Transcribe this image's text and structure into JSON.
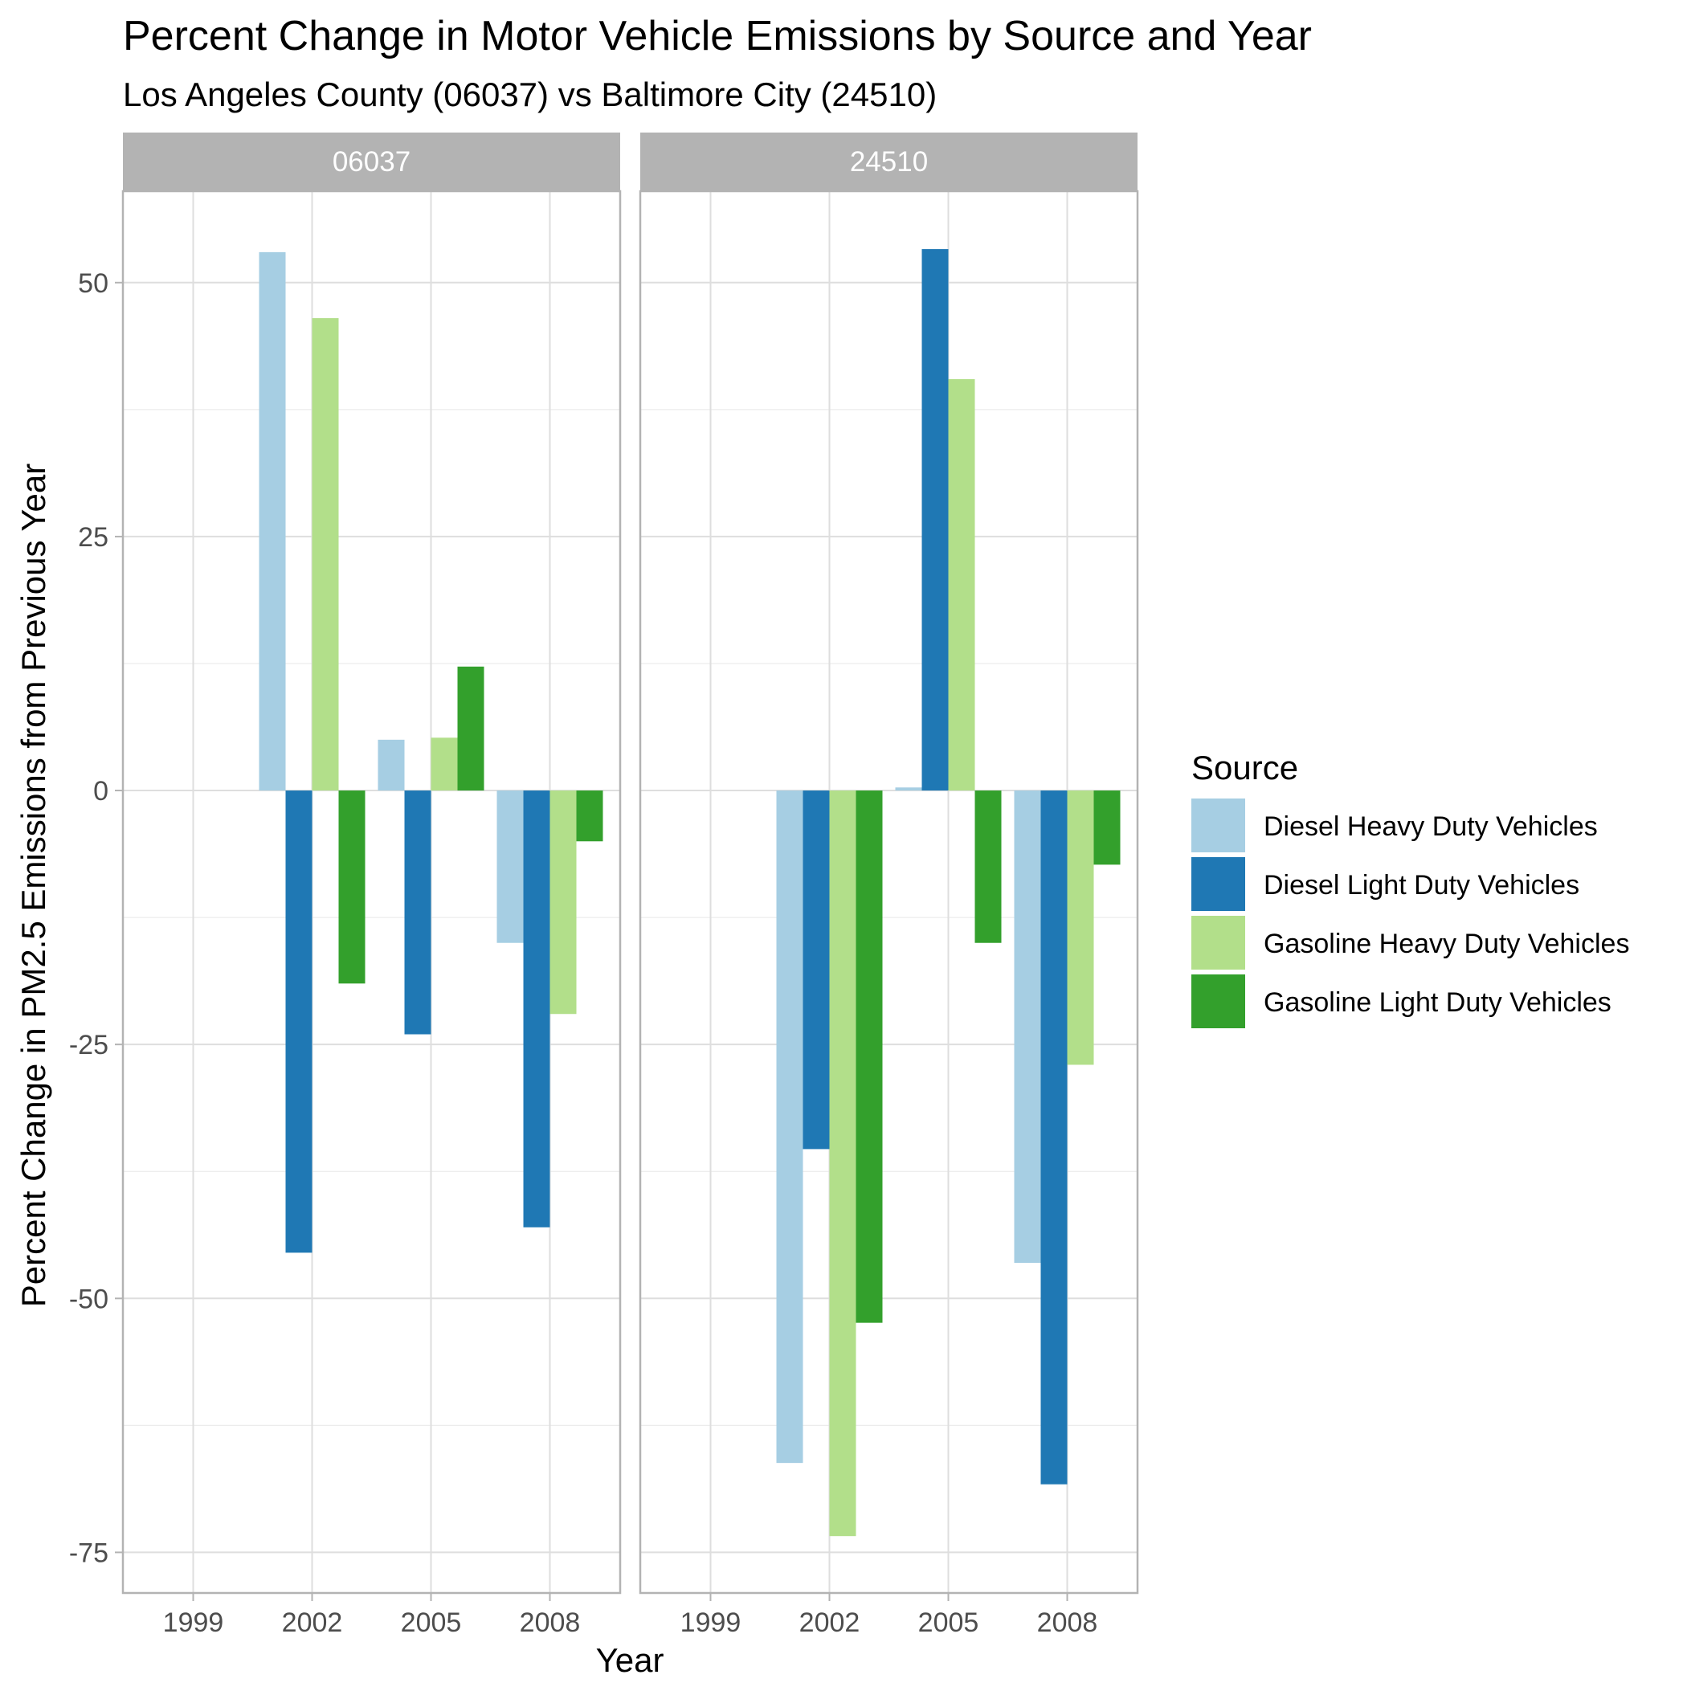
{
  "chart_data": {
    "type": "bar",
    "title": "Percent Change in Motor Vehicle Emissions by Source and Year",
    "subtitle": "Los Angeles County (06037) vs Baltimore City (24510)",
    "xlabel": "Year",
    "ylabel": "Percent Change in PM2.5 Emissions from Previous Year",
    "categories": [
      "1999",
      "2002",
      "2005",
      "2008"
    ],
    "y_ticks": [
      "50",
      "25",
      "0",
      "-25",
      "-50",
      "-75"
    ],
    "y_tick_values": [
      50,
      25,
      0,
      -25,
      -50,
      -75
    ],
    "ylim": [
      -79,
      59
    ],
    "grid": true,
    "legend": {
      "title": "Source",
      "placement": "right",
      "entries": [
        "Diesel Heavy Duty Vehicles",
        "Diesel Light Duty Vehicles",
        "Gasoline Heavy Duty Vehicles",
        "Gasoline Light Duty Vehicles"
      ]
    },
    "colors": {
      "Diesel Heavy Duty Vehicles": "#a6cee3",
      "Diesel Light Duty Vehicles": "#1f78b4",
      "Gasoline Heavy Duty Vehicles": "#b2df8a",
      "Gasoline Light Duty Vehicles": "#33a02c",
      "strip_bg": "#b3b3b3",
      "grid": "#dedede",
      "panel_border": "#b3b3b3",
      "axis_text": "#4d4d4d"
    },
    "panels": [
      {
        "label": "06037",
        "series": [
          {
            "name": "Diesel Heavy Duty Vehicles",
            "values": [
              null,
              53,
              5,
              -15
            ]
          },
          {
            "name": "Diesel Light Duty Vehicles",
            "values": [
              null,
              -45.5,
              -24,
              -43
            ]
          },
          {
            "name": "Gasoline Heavy Duty Vehicles",
            "values": [
              null,
              46.5,
              5.2,
              -22
            ]
          },
          {
            "name": "Gasoline Light Duty Vehicles",
            "values": [
              null,
              -19,
              12.2,
              -5
            ]
          }
        ]
      },
      {
        "label": "24510",
        "series": [
          {
            "name": "Diesel Heavy Duty Vehicles",
            "values": [
              null,
              -66.2,
              0.3,
              -46.5
            ]
          },
          {
            "name": "Diesel Light Duty Vehicles",
            "values": [
              null,
              -35.3,
              53.3,
              -68.3
            ]
          },
          {
            "name": "Gasoline Heavy Duty Vehicles",
            "values": [
              null,
              -73.4,
              40.5,
              -27
            ]
          },
          {
            "name": "Gasoline Light Duty Vehicles",
            "values": [
              null,
              -52.4,
              -15,
              -7.3
            ]
          }
        ]
      }
    ]
  }
}
